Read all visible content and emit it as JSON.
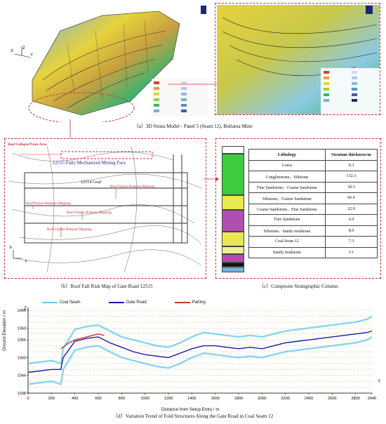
{
  "captions": {
    "a": "（a）3D Strata Model - Panel 5 (Seam 12), Bulianta Mine",
    "b": "（b）Roof Fall Risk Map of Gate Road 12515",
    "c": "（c）Composite Stratigraphic Column",
    "d": "（d）Variation Trend of Fold Structures Along the Gate Road in Coal Seam 12"
  },
  "model_3d": {
    "axes": {
      "x": "X",
      "y": "Y",
      "z": "Z"
    },
    "colors": {
      "high": "#c8463c",
      "mid": "#e6d23c",
      "low": "#3cb46e",
      "base": "#7ab0d8"
    }
  },
  "risk_map": {
    "roof_collapse_label": "Roof Collapse Prone Area",
    "mining_face_label": "12515 Fully Mechanized Mining Face",
    "goaf_label": "12514 Goaf",
    "hotspot_label": "Roof Failure Hotspots Mapping",
    "axis_x": "X",
    "axis_y": "Y"
  },
  "strat_column": {
    "headers": [
      "Lithology",
      "Stratum thickness/m"
    ],
    "rows": [
      {
        "lithology": "Loess",
        "thickness": "8.3",
        "color": "#ffffff"
      },
      {
        "lithology": "Conglomerate、Siltstone",
        "thickness": "132.3",
        "color": "#3ccc3c"
      },
      {
        "lithology": "Fine Sandstone、Coarse Sandstone",
        "thickness": "30.3",
        "color": "#e8e850"
      },
      {
        "lithology": "Siltstone、Coarse Sandstone",
        "thickness": "66.0",
        "color": "#b04fb0"
      },
      {
        "lithology": "Coarse Sandstone、Fine Sandstone",
        "thickness": "22.9",
        "color": "#e8e850"
      },
      {
        "lithology": "Fine Sandstone",
        "thickness": "6.9",
        "color": "#f0f090"
      },
      {
        "lithology": "Siltstone、Sandy mudstone",
        "thickness": "8.9",
        "color": "#b04fb0"
      },
      {
        "lithology": "Coal Seam 12",
        "thickness": "7.3",
        "color": "#111111"
      },
      {
        "lithology": "Sandy mudstone",
        "thickness": "3.1",
        "color": "#7ab0d8"
      }
    ]
  },
  "chart_data": {
    "type": "line",
    "xlabel": "Distance from Setup Entry / m",
    "ylabel": "Ground Elevation / m",
    "x_axis_letter": "Y",
    "y_axis_letter": "Z",
    "xlim": [
      0,
      2940
    ],
    "ylim": [
      1038,
      1066
    ],
    "xticks": [
      0,
      200,
      400,
      600,
      800,
      1000,
      1200,
      1400,
      1600,
      1800,
      2000,
      2200,
      2400,
      2600,
      2800,
      2940
    ],
    "yticks": [
      1038,
      1044,
      1050,
      1056,
      1060,
      1066
    ],
    "grid": "horizontal dashed",
    "legend_position": "top-left",
    "series": [
      {
        "name": "Coal Seam",
        "color": "#5ec8e8",
        "x": [
          0,
          200,
          280,
          300,
          400,
          500,
          600,
          700,
          800,
          900,
          1000,
          1100,
          1200,
          1300,
          1400,
          1500,
          1600,
          1700,
          1800,
          1900,
          2000,
          2100,
          2200,
          2300,
          2400,
          2500,
          2600,
          2700,
          2800,
          2900,
          2940
        ],
        "y": [
          1048,
          1049,
          1048,
          1053,
          1059.5,
          1060.5,
          1061,
          1059,
          1057,
          1056,
          1055,
          1054,
          1053.5,
          1055,
          1057,
          1058.5,
          1058,
          1057.5,
          1057,
          1057.5,
          1057,
          1058,
          1059,
          1059.5,
          1060,
          1060.5,
          1061,
          1061.5,
          1062,
          1063,
          1064
        ]
      },
      {
        "name": "Gate Road",
        "color": "#1a1aa0",
        "x": [
          0,
          200,
          280,
          300,
          400,
          500,
          600,
          700,
          800,
          900,
          1000,
          1100,
          1200,
          1300,
          1400,
          1500,
          1600,
          1700,
          1800,
          1900,
          2000,
          2100,
          2200,
          2300,
          2400,
          2500,
          2600,
          2700,
          2800,
          2900,
          2940
        ],
        "y": [
          1045,
          1046,
          1046,
          1050,
          1055.5,
          1056.5,
          1057,
          1055,
          1053.5,
          1052,
          1051,
          1050.5,
          1050,
          1051.5,
          1053,
          1054,
          1054,
          1053.5,
          1053,
          1053.5,
          1053,
          1054,
          1055,
          1055.5,
          1056,
          1056.5,
          1057,
          1057.5,
          1058,
          1058.5,
          1059
        ]
      },
      {
        "name": "Parting",
        "color": "#c83232",
        "x": [
          280,
          350,
          400,
          500,
          600,
          650
        ],
        "y": [
          1053,
          1055,
          1056,
          1057,
          1058,
          1057.5
        ]
      }
    ]
  }
}
